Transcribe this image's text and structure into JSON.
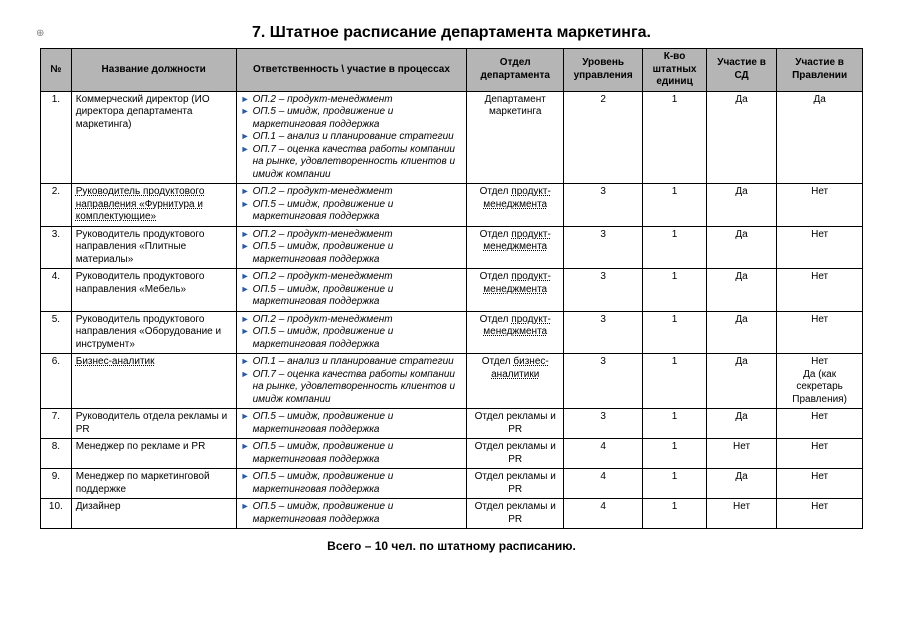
{
  "title": "7. Штатное расписание департамента маркетинга.",
  "anchor_mark": "⊕",
  "headers": {
    "num": "№",
    "position": "Название должности",
    "responsibility": "Ответственность \\ участие в процессах",
    "department": "Отдел департамента",
    "level": "Уровень управления",
    "count": "К-во штатных единиц",
    "sd": "Участие в СД",
    "board": "Участие в Правлении"
  },
  "rows": [
    {
      "num": "1.",
      "position_html": "Коммерческий директор (ИО директора департамента маркетинга)",
      "position_dotted": false,
      "responsibilities": [
        "ОП.2 – продукт-менеджмент",
        "ОП.5 – имидж, продвижение и маркетинговая поддержка",
        "ОП.1 – анализ и планирование стратегии",
        "ОП.7 – оценка качества работы компании на рынке, удовлетворенность клиентов и имидж компании"
      ],
      "department": "Департамент маркетинга",
      "department_dotted": false,
      "level": "2",
      "count": "1",
      "sd": "Да",
      "board": "Да"
    },
    {
      "num": "2.",
      "position_html": "Руководитель продуктового направления «Фурнитура и комплектующие»",
      "position_dotted": true,
      "responsibilities": [
        "ОП.2 – продукт-менеджмент",
        "ОП.5 – имидж, продвижение и маркетинговая поддержка"
      ],
      "department": "Отдел продукт-менеджмента",
      "department_dotted": true,
      "level": "3",
      "count": "1",
      "sd": "Да",
      "board": "Нет"
    },
    {
      "num": "3.",
      "position_html": "Руководитель продуктового направления «Плитные материалы»",
      "position_dotted": false,
      "responsibilities": [
        "ОП.2 – продукт-менеджмент",
        "ОП.5 – имидж, продвижение и маркетинговая поддержка"
      ],
      "department": "Отдел продукт-менеджмента",
      "department_dotted": true,
      "level": "3",
      "count": "1",
      "sd": "Да",
      "board": "Нет"
    },
    {
      "num": "4.",
      "position_html": "Руководитель продуктового направления «Мебель»",
      "position_dotted": false,
      "responsibilities": [
        "ОП.2 – продукт-менеджмент",
        "ОП.5 – имидж, продвижение и маркетинговая поддержка"
      ],
      "department": "Отдел продукт-менеджмента",
      "department_dotted": true,
      "level": "3",
      "count": "1",
      "sd": "Да",
      "board": "Нет"
    },
    {
      "num": "5.",
      "position_html": "Руководитель продуктового направления «Оборудование и инструмент»",
      "position_dotted": false,
      "responsibilities": [
        "ОП.2 – продукт-менеджмент",
        "ОП.5 – имидж, продвижение и маркетинговая поддержка"
      ],
      "department": "Отдел продукт-менеджмента",
      "department_dotted": true,
      "level": "3",
      "count": "1",
      "sd": "Да",
      "board": "Нет"
    },
    {
      "num": "6.",
      "position_html": "Бизнес-аналитик",
      "position_dotted": true,
      "responsibilities": [
        "ОП.1 – анализ и планирование стратегии",
        "ОП.7 – оценка качества работы компании на рынке, удовлетворенность клиентов и имидж компании"
      ],
      "department": "Отдел бизнес-аналитики",
      "department_dotted": true,
      "level": "3",
      "count": "1",
      "sd": "Да",
      "board": "Нет\nДа (как секретарь Правления)"
    },
    {
      "num": "7.",
      "position_html": "Руководитель отдела рекламы и PR",
      "position_dotted": false,
      "responsibilities": [
        "ОП.5 – имидж, продвижение и маркетинговая поддержка"
      ],
      "department": "Отдел рекламы и PR",
      "department_dotted": false,
      "level": "3",
      "count": "1",
      "sd": "Да",
      "board": "Нет"
    },
    {
      "num": "8.",
      "position_html": "Менеджер по рекламе и PR",
      "position_dotted": false,
      "responsibilities": [
        "ОП.5 – имидж, продвижение и маркетинговая поддержка"
      ],
      "department": "Отдел рекламы и PR",
      "department_dotted": false,
      "level": "4",
      "count": "1",
      "sd": "Нет",
      "board": "Нет"
    },
    {
      "num": "9.",
      "position_html": "Менеджер по маркетинговой поддержке",
      "position_dotted": false,
      "responsibilities": [
        "ОП.5 – имидж, продвижение и маркетинговая поддержка"
      ],
      "department": "Отдел рекламы и PR",
      "department_dotted": false,
      "level": "4",
      "count": "1",
      "sd": "Да",
      "board": "Нет"
    },
    {
      "num": "10.",
      "position_html": "Дизайнер",
      "position_dotted": false,
      "responsibilities": [
        "ОП.5 – имидж, продвижение и маркетинговая поддержка"
      ],
      "department": "Отдел рекламы и PR",
      "department_dotted": false,
      "level": "4",
      "count": "1",
      "sd": "Нет",
      "board": "Нет"
    }
  ],
  "footer": "Всего – 10 чел. по штатному расписанию."
}
